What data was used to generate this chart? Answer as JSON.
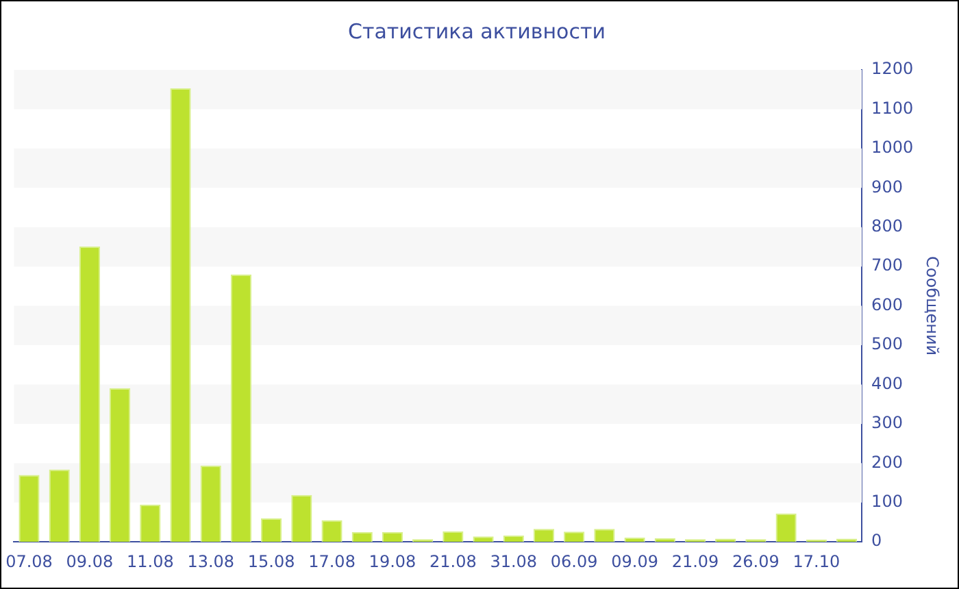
{
  "chart_data": {
    "type": "bar",
    "title": "Статистика активности",
    "ylabel": "Сообщений",
    "categories": [
      "07.08",
      null,
      "09.08",
      null,
      "11.08",
      null,
      "13.08",
      null,
      "15.08",
      null,
      "17.08",
      null,
      "19.08",
      null,
      "21.08",
      null,
      "31.08",
      null,
      "06.09",
      null,
      "09.09",
      null,
      "21.09",
      null,
      "26.09",
      null,
      "17.10",
      null
    ],
    "values": [
      170,
      184,
      751,
      391,
      95,
      1153,
      194,
      680,
      60,
      119,
      55,
      25,
      25,
      7,
      27,
      14,
      16,
      33,
      26,
      33,
      11,
      9,
      7,
      8,
      7,
      72,
      6,
      8
    ],
    "color": "#bde22f",
    "ylim": [
      0,
      1200
    ],
    "yticks": [
      0,
      100,
      200,
      300,
      400,
      500,
      600,
      700,
      800,
      900,
      1000,
      1100,
      1200
    ],
    "legend": false
  }
}
